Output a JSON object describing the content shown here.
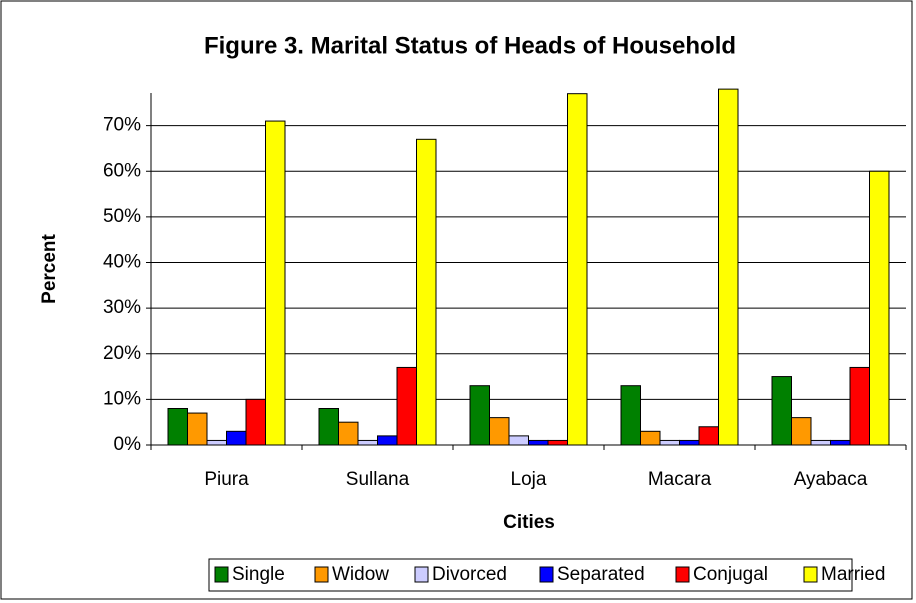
{
  "chart_data": {
    "type": "bar",
    "title": "Figure 3. Marital Status of Heads of Household",
    "x_label": "Cities",
    "y_label": "Percent",
    "categories": [
      "Piura",
      "Sullana",
      "Loja",
      "Macara",
      "Ayabaca"
    ],
    "series": [
      {
        "name": "Single",
        "color": "#008000",
        "values": [
          8,
          8,
          13,
          13,
          15
        ]
      },
      {
        "name": "Widow",
        "color": "#ff9900",
        "values": [
          7,
          5,
          6,
          3,
          6
        ]
      },
      {
        "name": "Divorced",
        "color": "#ccccff",
        "values": [
          1,
          1,
          2,
          1,
          1
        ]
      },
      {
        "name": "Separated",
        "color": "#0000ff",
        "values": [
          3,
          2,
          1,
          1,
          1
        ]
      },
      {
        "name": "Conjugal",
        "color": "#ff0000",
        "values": [
          10,
          17,
          1,
          4,
          17
        ]
      },
      {
        "name": "Married",
        "color": "#ffff00",
        "values": [
          71,
          67,
          77,
          78,
          60
        ]
      }
    ],
    "ylim": [
      0,
      80
    ],
    "yticks": [
      {
        "value": 0,
        "label": "0%"
      },
      {
        "value": 10,
        "label": "10%"
      },
      {
        "value": 20,
        "label": "20%"
      },
      {
        "value": 30,
        "label": "30%"
      },
      {
        "value": 40,
        "label": "40%"
      },
      {
        "value": 50,
        "label": "50%"
      },
      {
        "value": 60,
        "label": "60%"
      },
      {
        "value": 70,
        "label": "70%"
      }
    ],
    "grid": true,
    "legend": "bottom"
  }
}
